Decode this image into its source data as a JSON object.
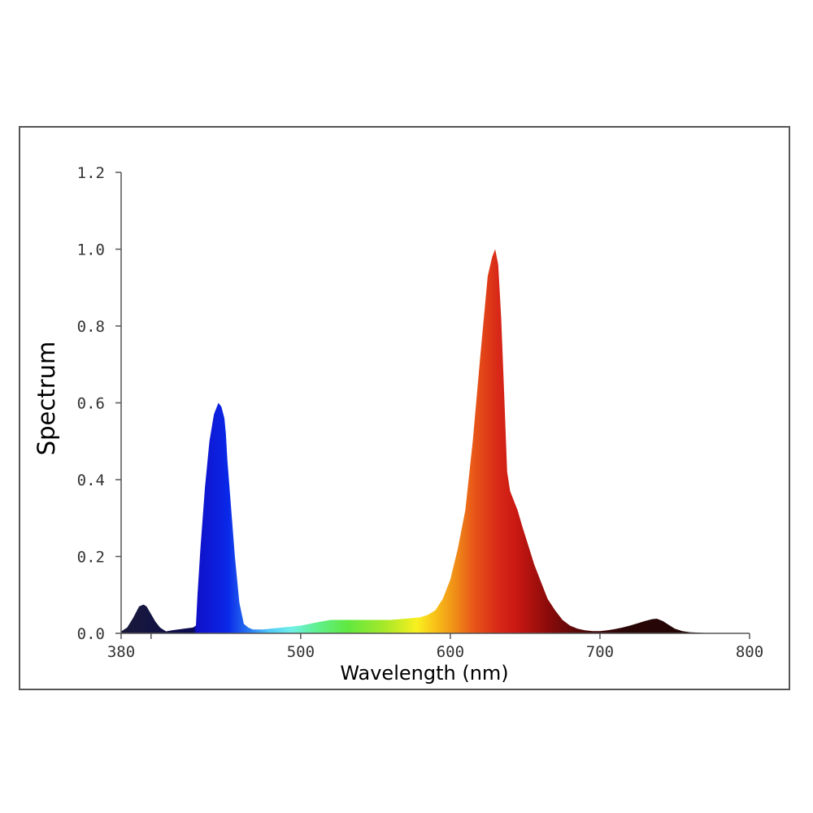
{
  "chart_data": {
    "type": "area",
    "title": "",
    "xlabel": "Wavelength (nm)",
    "ylabel": "Spectrum",
    "xlim": [
      380,
      800
    ],
    "ylim": [
      0,
      1.2
    ],
    "x_ticks": [
      {
        "value": 380,
        "label": "380"
      },
      {
        "value": 500,
        "label": "500"
      },
      {
        "value": 600,
        "label": "600"
      },
      {
        "value": 700,
        "label": "700"
      },
      {
        "value": 800,
        "label": "800"
      }
    ],
    "y_ticks": [
      {
        "value": 0.0,
        "label": "0.0"
      },
      {
        "value": 0.2,
        "label": "0.2"
      },
      {
        "value": 0.4,
        "label": "0.4"
      },
      {
        "value": 0.6,
        "label": "0.6"
      },
      {
        "value": 0.8,
        "label": "0.8"
      },
      {
        "value": 1.0,
        "label": "1.0"
      },
      {
        "value": 1.2,
        "label": "1.2"
      }
    ],
    "grid": false,
    "fill": "visible-spectrum gradient",
    "series": [
      {
        "x": [
          380,
          384,
          388,
          392,
          395,
          397,
          400,
          403,
          406,
          410,
          414,
          418,
          422,
          428,
          430,
          431,
          433,
          436,
          439,
          442,
          445,
          447,
          449,
          450,
          451,
          453,
          456,
          459,
          462,
          465,
          468,
          470,
          475,
          480,
          490,
          500,
          510,
          520,
          530,
          540,
          550,
          560,
          570,
          580,
          585,
          590,
          595,
          600,
          605,
          610,
          615,
          620,
          625,
          628,
          630,
          632,
          634,
          636,
          638,
          640,
          642,
          645,
          648,
          652,
          656,
          660,
          665,
          670,
          675,
          680,
          685,
          690,
          695,
          700,
          705,
          710,
          715,
          720,
          725,
          730,
          735,
          738,
          742,
          746,
          750,
          755,
          760,
          770,
          780,
          790,
          800
        ],
        "y": [
          0.005,
          0.015,
          0.04,
          0.07,
          0.075,
          0.07,
          0.05,
          0.03,
          0.015,
          0.005,
          0.008,
          0.01,
          0.012,
          0.015,
          0.02,
          0.1,
          0.22,
          0.38,
          0.5,
          0.57,
          0.6,
          0.59,
          0.56,
          0.52,
          0.45,
          0.35,
          0.2,
          0.08,
          0.025,
          0.015,
          0.01,
          0.01,
          0.01,
          0.012,
          0.016,
          0.02,
          0.028,
          0.035,
          0.035,
          0.035,
          0.035,
          0.035,
          0.038,
          0.042,
          0.048,
          0.06,
          0.09,
          0.14,
          0.22,
          0.32,
          0.5,
          0.72,
          0.93,
          0.98,
          1.0,
          0.96,
          0.82,
          0.62,
          0.42,
          0.37,
          0.35,
          0.32,
          0.28,
          0.23,
          0.18,
          0.14,
          0.09,
          0.06,
          0.035,
          0.02,
          0.012,
          0.008,
          0.006,
          0.006,
          0.008,
          0.011,
          0.015,
          0.02,
          0.026,
          0.032,
          0.037,
          0.038,
          0.032,
          0.022,
          0.012,
          0.006,
          0.003,
          0.001,
          0.0,
          0.0,
          0.0
        ]
      }
    ]
  }
}
